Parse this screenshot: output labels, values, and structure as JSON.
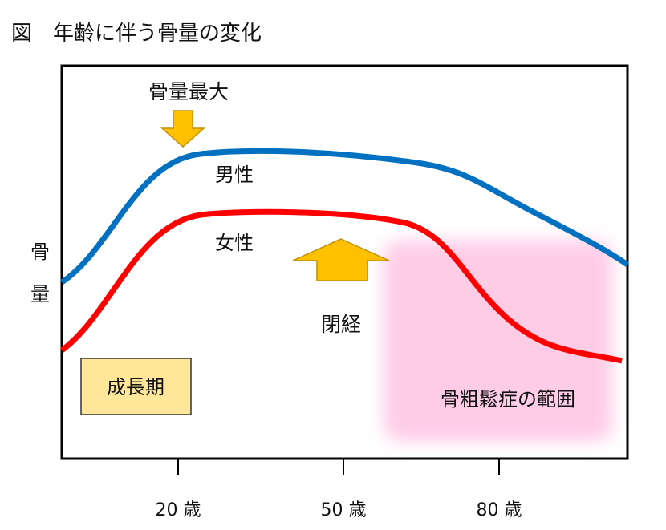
{
  "title": "図　年齢に伴う骨量の変化",
  "chart_data": {
    "type": "line",
    "title": "図　年齢に伴う骨量の変化",
    "ylabel": [
      "骨",
      "量"
    ],
    "xticks": [
      "20 歳",
      "50 歳",
      "80 歳"
    ],
    "series": [
      {
        "name": "男性",
        "color": "#0070C0"
      },
      {
        "name": "女性",
        "color": "#FF0000"
      }
    ],
    "annotations": {
      "peak": "骨量最大",
      "menopause": "閉経",
      "growth": "成長期",
      "osteoporosis": "骨粗鬆症の範囲"
    },
    "colors": {
      "arrow": "#FFC000",
      "growth_box": "#FFE699",
      "osteoporosis_region": "#FFCCE6"
    }
  }
}
